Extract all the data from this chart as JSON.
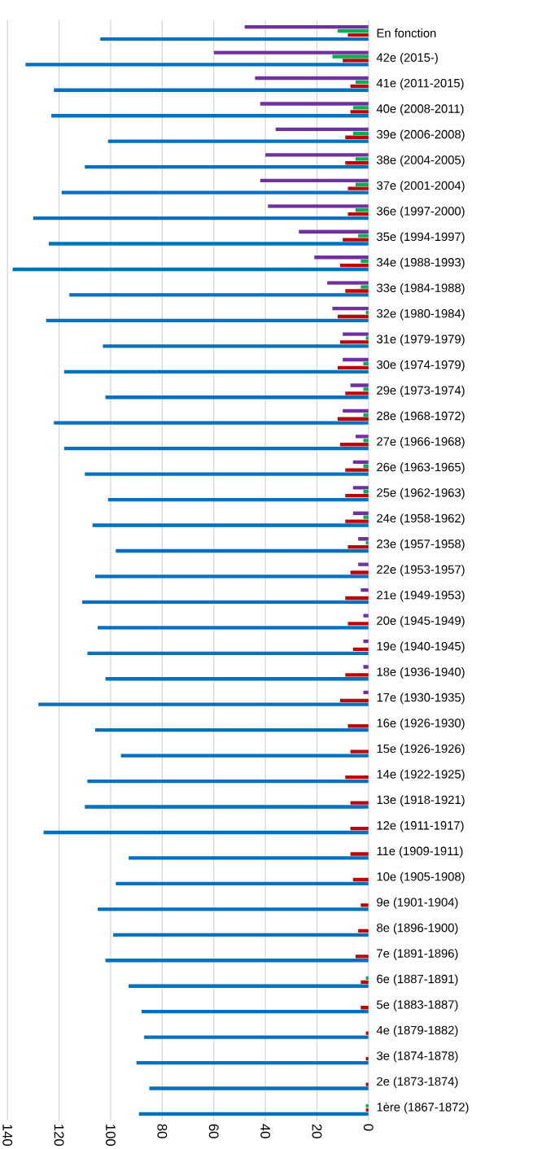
{
  "chart_data": {
    "type": "bar",
    "orientation": "horizontal",
    "categories": [
      "En fonction",
      "42e (2015-)",
      "41e (2011-2015)",
      "40e (2008-2011)",
      "39e (2006-2008)",
      "38e (2004-2005)",
      "37e (2001-2004)",
      "36e (1997-2000)",
      "35e (1994-1997)",
      "34e (1988-1993)",
      "33e (1984-1988)",
      "32e (1980-1984)",
      "31e (1979-1979)",
      "30e (1974-1979)",
      "29e (1973-1974)",
      "28e (1968-1972)",
      "27e (1966-1968)",
      "26e (1963-1965)",
      "25e (1962-1963)",
      "24e (1958-1962)",
      "23e (1957-1958)",
      "22e (1953-1957)",
      "21e (1949-1953)",
      "20e (1945-1949)",
      "19e (1940-1945)",
      "18e (1936-1940)",
      "17e (1930-1935)",
      "16e (1926-1930)",
      "15e (1926-1926)",
      "14e (1922-1925)",
      "13e (1918-1921)",
      "12e (1911-1917)",
      "11e (1909-1911)",
      "10e (1905-1908)",
      "9e (1901-1904)",
      "8e (1896-1900)",
      "7e (1891-1896)",
      "6e (1887-1891)",
      "5e (1883-1887)",
      "4e (1879-1882)",
      "3e (1874-1878)",
      "2e (1873-1874)",
      "1ère (1867-1872)"
    ],
    "series": [
      {
        "color": "#0070c0",
        "values": [
          104,
          133,
          122,
          123,
          101,
          110,
          119,
          130,
          124,
          138,
          116,
          125,
          103,
          118,
          102,
          122,
          118,
          110,
          101,
          107,
          98,
          106,
          111,
          105,
          109,
          102,
          128,
          106,
          96,
          109,
          110,
          126,
          93,
          98,
          105,
          99,
          102,
          93,
          88,
          87,
          90,
          85,
          89
        ]
      },
      {
        "color": "#c00000",
        "values": [
          8,
          10,
          7,
          7,
          9,
          9,
          8,
          8,
          10,
          11,
          9,
          12,
          11,
          12,
          9,
          12,
          11,
          9,
          9,
          9,
          8,
          7,
          9,
          8,
          6,
          9,
          11,
          8,
          7,
          9,
          7,
          7,
          7,
          6,
          3,
          4,
          5,
          3,
          3,
          1,
          1,
          1,
          1
        ]
      },
      {
        "color": "#00b050",
        "values": [
          12,
          14,
          5,
          6,
          6,
          5,
          5,
          5,
          4,
          3,
          3,
          1,
          1,
          2,
          2,
          2,
          2,
          2,
          2,
          2,
          1,
          null,
          null,
          null,
          null,
          null,
          null,
          null,
          null,
          null,
          null,
          null,
          null,
          null,
          null,
          null,
          null,
          1,
          null,
          null,
          null,
          null,
          1
        ]
      },
      {
        "color": "#7030a0",
        "values": [
          48,
          60,
          44,
          42,
          36,
          40,
          42,
          39,
          27,
          21,
          16,
          14,
          10,
          10,
          7,
          10,
          5,
          6,
          6,
          6,
          4,
          4,
          3,
          2,
          2,
          2,
          2,
          null,
          null,
          null,
          null,
          null,
          null,
          null,
          null,
          null,
          null,
          null,
          null,
          null,
          null,
          null,
          null
        ]
      }
    ],
    "xlim": [
      140,
      0
    ],
    "xticks": [
      0,
      20,
      40,
      60,
      80,
      100,
      120,
      140
    ],
    "grid": "x"
  }
}
